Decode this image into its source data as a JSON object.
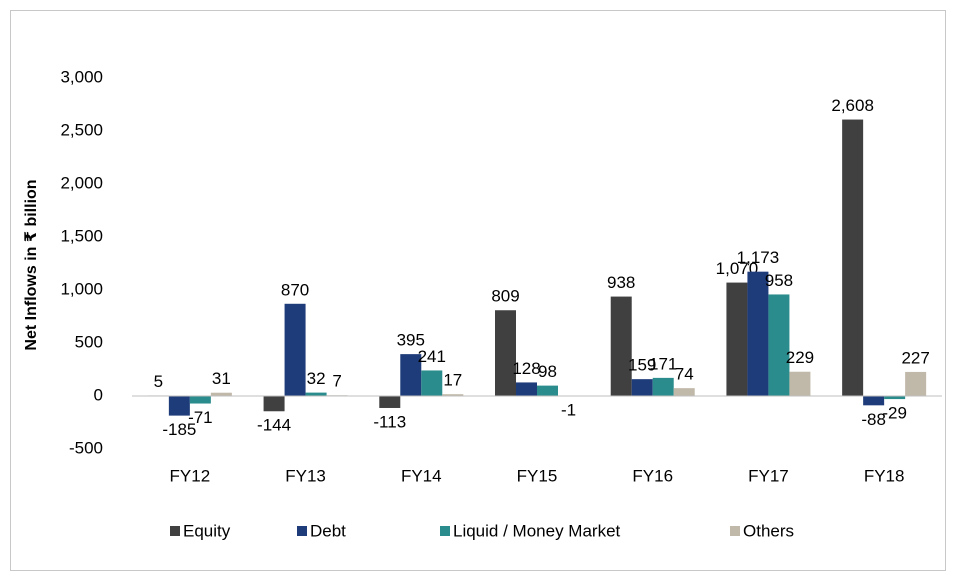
{
  "chart_data": {
    "type": "bar",
    "y_label": "Net Inflows in ₹ billion",
    "categories": [
      "FY12",
      "FY13",
      "FY14",
      "FY15",
      "FY16",
      "FY17",
      "FY18"
    ],
    "series": [
      {
        "name": "Equity",
        "color": "#404040",
        "values": [
          5,
          -144,
          -113,
          809,
          938,
          1070,
          2608
        ],
        "value_labels": [
          "5",
          "-144",
          "-113",
          "809",
          "938",
          "1,070",
          "2,608"
        ]
      },
      {
        "name": "Debt",
        "color": "#1f3c7a",
        "values": [
          -185,
          870,
          395,
          128,
          159,
          1173,
          -88
        ],
        "value_labels": [
          "-185",
          "870",
          "395",
          "128",
          "159",
          "1,173",
          "-88"
        ]
      },
      {
        "name": "Liquid / Money Market",
        "color": "#2a8c8c",
        "values": [
          -71,
          32,
          241,
          98,
          171,
          958,
          -29
        ]
      },
      {
        "name": "Others",
        "color": "#c0b8a8",
        "values": [
          31,
          7,
          17,
          -1,
          74,
          229,
          227
        ]
      }
    ],
    "ylim": [
      -500,
      3000
    ],
    "yticks": [
      -500,
      0,
      500,
      {
        "value": 1000,
        "label": "1,000"
      },
      {
        "value": 1500,
        "label": "1,500"
      },
      {
        "value": 2000,
        "label": "2,000"
      },
      {
        "value": 2500,
        "label": "2,500"
      },
      {
        "value": 3000,
        "label": "3,000"
      }
    ],
    "legend": "bottom"
  }
}
